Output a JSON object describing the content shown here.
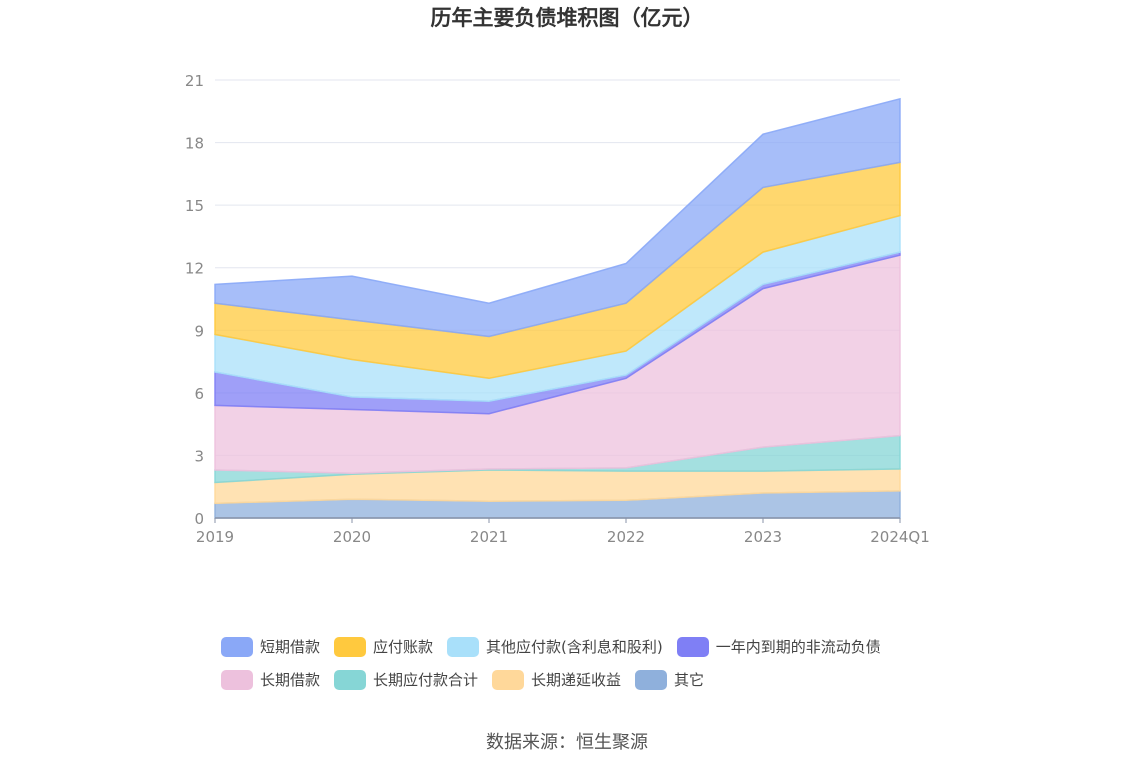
{
  "chart_data": {
    "type": "area",
    "stacked": true,
    "title": "历年主要负债堆积图（亿元）",
    "categories": [
      "2019",
      "2020",
      "2021",
      "2022",
      "2023",
      "2024Q1"
    ],
    "ylim": [
      0,
      21
    ],
    "yticks": [
      0,
      3,
      6,
      9,
      12,
      15,
      18,
      21
    ],
    "grid": true,
    "legend_position": "bottom",
    "series": [
      {
        "name": "其它",
        "color": "#8fb0dc",
        "values": [
          0.7,
          0.9,
          0.8,
          0.85,
          1.2,
          1.3
        ]
      },
      {
        "name": "长期递延收益",
        "color": "#ffd89a",
        "values": [
          1.0,
          1.2,
          1.5,
          1.4,
          1.05,
          1.05
        ]
      },
      {
        "name": "长期应付款合计",
        "color": "#86d6d6",
        "values": [
          0.6,
          0.05,
          0.05,
          0.15,
          1.15,
          1.6
        ]
      },
      {
        "name": "长期借款",
        "color": "#edc1dd",
        "values": [
          3.1,
          3.05,
          2.65,
          4.3,
          7.6,
          8.65
        ]
      },
      {
        "name": "一年内到期的非流动负债",
        "color": "#7f7ff5",
        "values": [
          1.6,
          0.6,
          0.6,
          0.15,
          0.2,
          0.15
        ]
      },
      {
        "name": "其他应付款(含利息和股利)",
        "color": "#a9e0fa",
        "values": [
          1.8,
          1.8,
          1.1,
          1.15,
          1.55,
          1.75
        ]
      },
      {
        "name": "应付账款",
        "color": "#ffc93e",
        "values": [
          1.5,
          1.9,
          2.0,
          2.3,
          3.1,
          2.55
        ]
      },
      {
        "name": "短期借款",
        "color": "#8aa8f7",
        "values": [
          0.9,
          2.1,
          1.6,
          1.9,
          2.55,
          3.05
        ]
      }
    ]
  },
  "legend_rows": [
    [
      {
        "label": "短期借款",
        "color": "#8aa8f7"
      },
      {
        "label": "应付账款",
        "color": "#ffc93e"
      },
      {
        "label": "其他应付款(含利息和股利)",
        "color": "#a9e0fa"
      },
      {
        "label": "一年内到期的非流动负债",
        "color": "#7f7ff5"
      }
    ],
    [
      {
        "label": "长期借款",
        "color": "#edc1dd"
      },
      {
        "label": "长期应付款合计",
        "color": "#86d6d6"
      },
      {
        "label": "长期递延收益",
        "color": "#ffd89a"
      },
      {
        "label": "其它",
        "color": "#8fb0dc"
      }
    ]
  ],
  "source": "数据来源：恒生聚源"
}
